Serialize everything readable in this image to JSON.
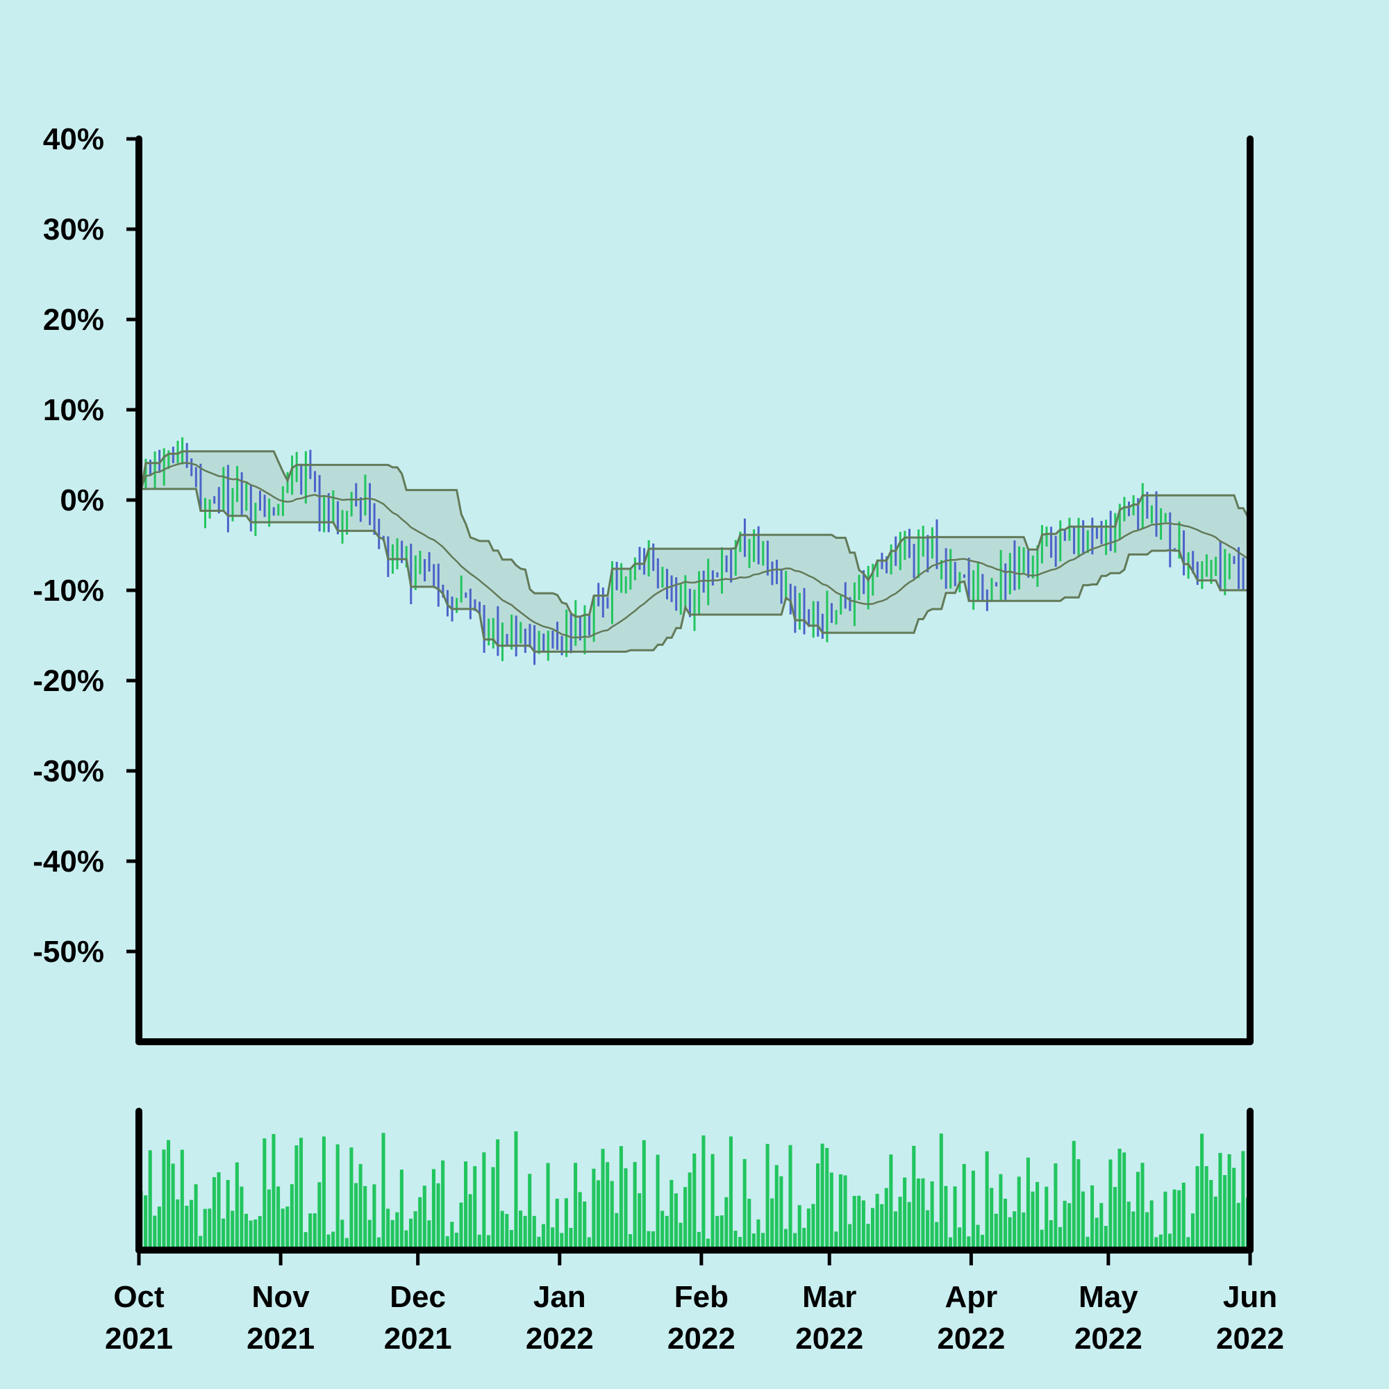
{
  "chart_data": {
    "type": "ohlc",
    "title": "",
    "xlabel": "",
    "ylabel": "",
    "ylim": [
      -60,
      40
    ],
    "y_tick_values": [
      40,
      30,
      20,
      10,
      0,
      -10,
      -20,
      -30,
      -40,
      -50
    ],
    "y_tick_labels": [
      "40%",
      "30%",
      "20%",
      "10%",
      "0%",
      "-10%",
      "-20%",
      "-30%",
      "-40%",
      "-50%"
    ],
    "xlim": [
      "2021-10-01",
      "2022-06-01"
    ],
    "x_ticks": [
      {
        "date": "2021-10-01",
        "month": "Oct",
        "year": "2021"
      },
      {
        "date": "2021-11-01",
        "month": "Nov",
        "year": "2021"
      },
      {
        "date": "2021-12-01",
        "month": "Dec",
        "year": "2021"
      },
      {
        "date": "2022-01-01",
        "month": "Jan",
        "year": "2022"
      },
      {
        "date": "2022-02-01",
        "month": "Feb",
        "year": "2022"
      },
      {
        "date": "2022-03-01",
        "month": "Mar",
        "year": "2022"
      },
      {
        "date": "2022-04-01",
        "month": "Apr",
        "year": "2022"
      },
      {
        "date": "2022-05-01",
        "month": "May",
        "year": "2022"
      },
      {
        "date": "2022-06-01",
        "month": "Jun",
        "year": "2022"
      }
    ],
    "trend_keypoints": [
      [
        "2021-10-01",
        3
      ],
      [
        "2021-10-08",
        5
      ],
      [
        "2021-10-15",
        0
      ],
      [
        "2021-10-22",
        0
      ],
      [
        "2021-10-29",
        -2
      ],
      [
        "2021-11-04",
        3
      ],
      [
        "2021-11-12",
        -2
      ],
      [
        "2021-11-19",
        0
      ],
      [
        "2021-11-25",
        -6
      ],
      [
        "2021-12-02",
        -9
      ],
      [
        "2021-12-09",
        -11
      ],
      [
        "2021-12-16",
        -15
      ],
      [
        "2021-12-23",
        -15
      ],
      [
        "2021-12-30",
        -16
      ],
      [
        "2022-01-06",
        -13
      ],
      [
        "2022-01-13",
        -9
      ],
      [
        "2022-01-20",
        -7
      ],
      [
        "2022-01-27",
        -12
      ],
      [
        "2022-02-03",
        -8
      ],
      [
        "2022-02-10",
        -5
      ],
      [
        "2022-02-17",
        -9
      ],
      [
        "2022-02-24",
        -14
      ],
      [
        "2022-03-03",
        -12
      ],
      [
        "2022-03-10",
        -8
      ],
      [
        "2022-03-17",
        -6
      ],
      [
        "2022-03-24",
        -6
      ],
      [
        "2022-03-31",
        -10
      ],
      [
        "2022-04-07",
        -8
      ],
      [
        "2022-04-14",
        -6
      ],
      [
        "2022-04-21",
        -4
      ],
      [
        "2022-04-28",
        -6
      ],
      [
        "2022-05-05",
        -1
      ],
      [
        "2022-05-12",
        -2
      ],
      [
        "2022-05-19",
        -8
      ],
      [
        "2022-05-26",
        -8
      ],
      [
        "2022-06-01",
        -8
      ]
    ],
    "up_color": "#22c55e",
    "down_color": "#4a63c9",
    "band_color": "#627a58",
    "volume_color": "#22c55e",
    "background": "#c9eef0",
    "grid": false,
    "legend": "none"
  }
}
